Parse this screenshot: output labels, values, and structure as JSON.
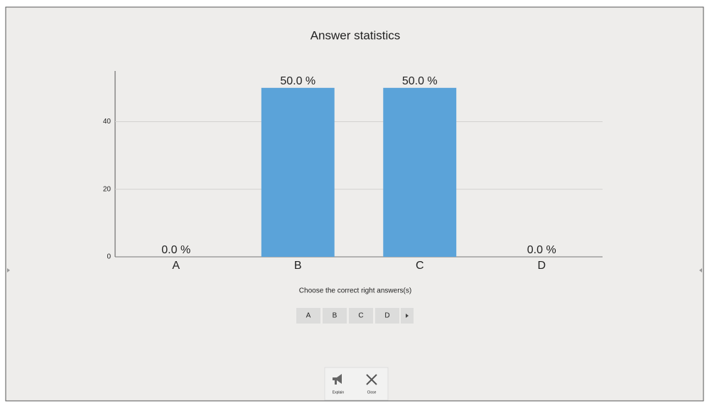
{
  "chart_data": {
    "type": "bar",
    "title": "Answer statistics",
    "categories": [
      "A",
      "B",
      "C",
      "D"
    ],
    "values": [
      0,
      50,
      50,
      0
    ],
    "value_labels": [
      "0.0 %",
      "50.0 %",
      "50.0 %",
      "0.0 %"
    ],
    "color": "#5ba3d9",
    "ylim": [
      0,
      55
    ],
    "yticks": [
      0,
      20,
      40
    ],
    "grid": true
  },
  "prompt": "Choose the correct right answers(s)",
  "answer_buttons": [
    "A",
    "B",
    "C",
    "D"
  ],
  "toolbar": [
    {
      "label": "Explain"
    },
    {
      "label": "Close"
    }
  ]
}
